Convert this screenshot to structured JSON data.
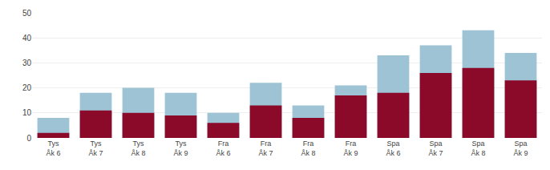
{
  "chart_data": {
    "type": "bar",
    "categories": [
      "Tys\nÅk 6",
      "Tys\nÅk 7",
      "Tys\nÅk 8",
      "Tys\nÅk 9",
      "Fra\nÅk 6",
      "Fra\nÅk 7",
      "Fra\nÅk 8",
      "Fra\nÅk 9",
      "Spa\nÅk 6",
      "Spa\nÅk 7",
      "Spa\nÅk 8",
      "Spa\nÅk 9"
    ],
    "series": [
      {
        "color": "#9DC3D4",
        "values": [
          8,
          18,
          20,
          18,
          10,
          22,
          13,
          21,
          33,
          37,
          43,
          34
        ]
      },
      {
        "color": "#8B0A2A",
        "values": [
          2,
          11,
          10,
          9,
          6,
          13,
          8,
          17,
          18,
          26,
          28,
          23
        ]
      }
    ],
    "stacked": false,
    "ylim": [
      0,
      50
    ],
    "yticks": [
      0,
      10,
      20,
      30,
      40,
      50
    ],
    "grid": true
  }
}
